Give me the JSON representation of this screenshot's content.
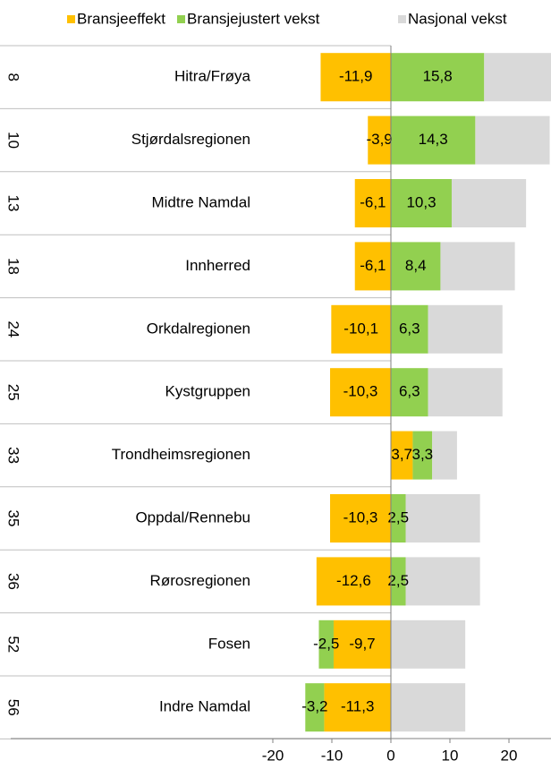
{
  "chart_data": {
    "type": "stacked-bar-horizontal",
    "ranks": [
      "8",
      "10",
      "13",
      "18",
      "24",
      "25",
      "33",
      "35",
      "36",
      "52",
      "56"
    ],
    "categories": [
      "Hitra/Frøya",
      "Stjørdalsregionen",
      "Midtre Namdal",
      "Innherred",
      "Orkdalregionen",
      "Kystgruppen",
      "Trondheimsregionen",
      "Oppdal/Rennebu",
      "Rørosregionen",
      "Fosen",
      "Indre Namdal"
    ],
    "series": [
      {
        "name": "Bransjeeffekt",
        "color": "#ffc000",
        "values": [
          -11.9,
          -3.9,
          -6.1,
          -6.1,
          -10.1,
          -10.3,
          3.7,
          -10.3,
          -12.6,
          -9.7,
          -11.3
        ],
        "value_labels": [
          "-11,9",
          "-3,9",
          "-6,1",
          "-6,1",
          "-10,1",
          "-10,3",
          "3,7",
          "-10,3",
          "-12,6",
          "-9,7",
          "-11,3"
        ]
      },
      {
        "name": "Bransjejustert vekst",
        "color": "#92d050",
        "values": [
          15.8,
          14.3,
          10.3,
          8.4,
          6.3,
          6.3,
          3.3,
          2.5,
          2.5,
          -2.5,
          -3.2
        ],
        "value_labels": [
          "15,8",
          "14,3",
          "10,3",
          "8,4",
          "6,3",
          "6,3",
          "3,3",
          "2,5",
          "2,5",
          "-2,5",
          "-3,2"
        ]
      },
      {
        "name": "Nasjonal vekst",
        "color": "#d9d9d9",
        "values": [
          12.6,
          12.6,
          12.6,
          12.6,
          12.6,
          12.6,
          4.2,
          12.6,
          12.6,
          12.6,
          12.6
        ]
      }
    ],
    "xlim": [
      -22,
      27
    ],
    "xticks": [
      -20,
      -10,
      0,
      10,
      20
    ]
  }
}
